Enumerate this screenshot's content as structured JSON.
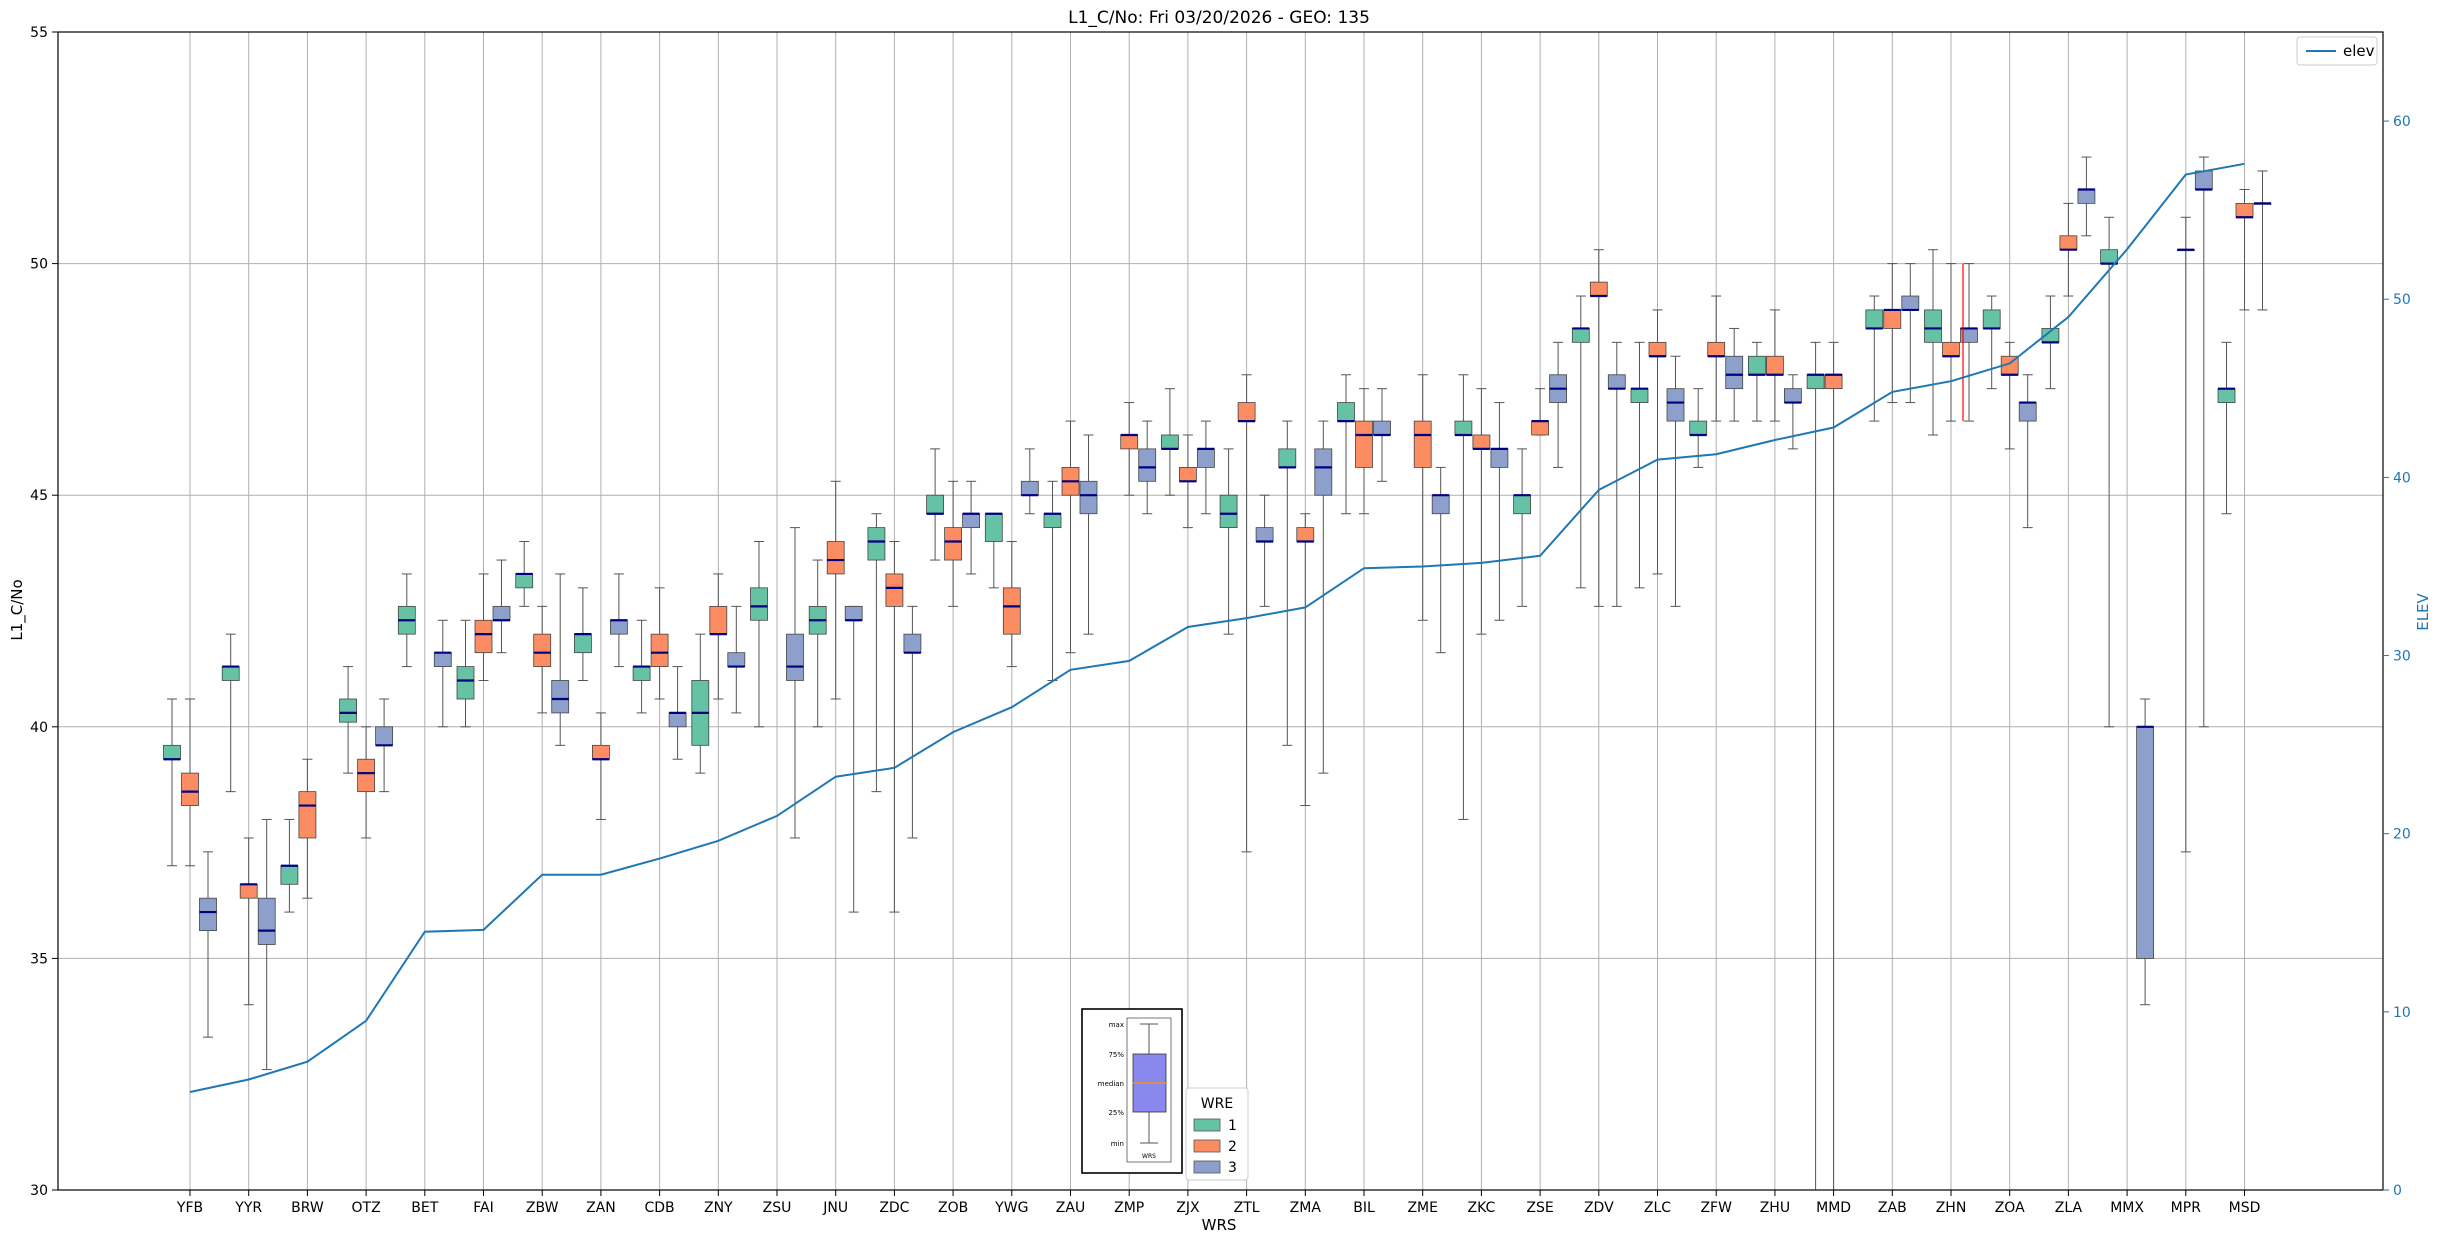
{
  "chart_data": {
    "type": "box",
    "title": "L1_C/No: Fri 03/20/2026 - GEO: 135",
    "xlabel": "WRS",
    "ylabel": "L1_C/No",
    "y2label": "ELEV",
    "ylim": [
      30,
      55
    ],
    "y2lim": [
      0,
      65
    ],
    "yticks": [
      30,
      35,
      40,
      45,
      50,
      55
    ],
    "y2ticks": [
      0,
      10,
      20,
      30,
      40,
      50,
      60
    ],
    "grid": true,
    "colors": {
      "1": "#66c2a5",
      "2": "#fc8d62",
      "3": "#8da0cb",
      "elev": "#1f77b4",
      "median": "#000080"
    },
    "categories": [
      "YFB",
      "YYR",
      "BRW",
      "OTZ",
      "BET",
      "FAI",
      "ZBW",
      "ZAN",
      "CDB",
      "ZNY",
      "ZSU",
      "JNU",
      "ZDC",
      "ZOB",
      "YWG",
      "ZAU",
      "ZMP",
      "ZJX",
      "ZTL",
      "ZMA",
      "BIL",
      "ZME",
      "ZKC",
      "ZSE",
      "ZDV",
      "ZLC",
      "ZFW",
      "ZHU",
      "MMD",
      "ZAB",
      "ZHN",
      "ZOA",
      "ZLA",
      "MMX",
      "MPR",
      "MSD"
    ],
    "elev": [
      5.5,
      6.2,
      7.2,
      9.5,
      14.5,
      14.6,
      17.7,
      17.7,
      18.6,
      19.6,
      21.0,
      23.2,
      23.7,
      25.7,
      27.1,
      29.2,
      29.7,
      31.6,
      32.1,
      32.7,
      34.9,
      35.0,
      35.2,
      35.6,
      39.3,
      41.0,
      41.3,
      42.1,
      42.8,
      44.8,
      45.4,
      46.4,
      49.0,
      52.8,
      57.0,
      57.6
    ],
    "series": [
      {
        "name": "1",
        "boxes": [
          {
            "x": 0,
            "min": 37.0,
            "q1": 39.3,
            "med": 39.3,
            "q3": 39.6,
            "max": 40.6
          },
          {
            "x": 1,
            "min": 38.6,
            "q1": 41.0,
            "med": 41.3,
            "q3": 41.3,
            "max": 42.0
          },
          {
            "x": 2,
            "min": 36.0,
            "q1": 36.6,
            "med": 37.0,
            "q3": 37.0,
            "max": 38.0
          },
          {
            "x": 3,
            "min": 39.0,
            "q1": 40.1,
            "med": 40.3,
            "q3": 40.6,
            "max": 41.3
          },
          {
            "x": 4,
            "min": 41.3,
            "q1": 42.0,
            "med": 42.3,
            "q3": 42.6,
            "max": 43.3
          },
          {
            "x": 5,
            "min": 40.0,
            "q1": 40.6,
            "med": 41.0,
            "q3": 41.3,
            "max": 42.3
          },
          {
            "x": 6,
            "min": 42.6,
            "q1": 43.0,
            "med": 43.3,
            "q3": 43.3,
            "max": 44.0
          },
          {
            "x": 7,
            "min": 41.0,
            "q1": 41.6,
            "med": 42.0,
            "q3": 42.0,
            "max": 43.0
          },
          {
            "x": 8,
            "min": 40.3,
            "q1": 41.0,
            "med": 41.3,
            "q3": 41.3,
            "max": 42.3
          },
          {
            "x": 9,
            "min": 39.0,
            "q1": 39.6,
            "med": 40.3,
            "q3": 41.0,
            "max": 42.0
          },
          {
            "x": 10,
            "min": 40.0,
            "q1": 42.3,
            "med": 42.6,
            "q3": 43.0,
            "max": 44.0
          },
          {
            "x": 11,
            "min": 40.0,
            "q1": 42.0,
            "med": 42.3,
            "q3": 42.6,
            "max": 43.6
          },
          {
            "x": 12,
            "min": 38.6,
            "q1": 43.6,
            "med": 44.0,
            "q3": 44.3,
            "max": 44.6
          },
          {
            "x": 13,
            "min": 43.6,
            "q1": 44.6,
            "med": 44.6,
            "q3": 45.0,
            "max": 46.0
          },
          {
            "x": 14,
            "min": 43.0,
            "q1": 44.0,
            "med": 44.6,
            "q3": 44.6,
            "max": 44.6
          },
          {
            "x": 15,
            "min": 41.0,
            "q1": 44.3,
            "med": 44.6,
            "q3": 44.6,
            "max": 45.3
          },
          {
            "x": 17,
            "min": 45.0,
            "q1": 46.0,
            "med": 46.0,
            "q3": 46.3,
            "max": 47.3
          },
          {
            "x": 18,
            "min": 42.0,
            "q1": 44.3,
            "med": 44.6,
            "q3": 45.0,
            "max": 46.0
          },
          {
            "x": 19,
            "min": 39.6,
            "q1": 45.6,
            "med": 45.6,
            "q3": 46.0,
            "max": 46.6
          },
          {
            "x": 20,
            "min": 44.6,
            "q1": 46.6,
            "med": 46.6,
            "q3": 47.0,
            "max": 47.6
          },
          {
            "x": 22,
            "min": 38.0,
            "q1": 46.3,
            "med": 46.3,
            "q3": 46.6,
            "max": 47.6
          },
          {
            "x": 23,
            "min": 42.6,
            "q1": 44.6,
            "med": 45.0,
            "q3": 45.0,
            "max": 46.0
          },
          {
            "x": 24,
            "min": 43.0,
            "q1": 48.3,
            "med": 48.6,
            "q3": 48.6,
            "max": 49.3
          },
          {
            "x": 25,
            "min": 43.0,
            "q1": 47.0,
            "med": 47.3,
            "q3": 47.3,
            "max": 48.3
          },
          {
            "x": 26,
            "min": 45.6,
            "q1": 46.3,
            "med": 46.3,
            "q3": 46.6,
            "max": 47.3
          },
          {
            "x": 27,
            "min": 46.6,
            "q1": 47.6,
            "med": 47.6,
            "q3": 48.0,
            "max": 48.3
          },
          {
            "x": 28,
            "min": 30.0,
            "q1": 47.3,
            "med": 47.6,
            "q3": 47.6,
            "max": 48.3
          },
          {
            "x": 29,
            "min": 46.6,
            "q1": 48.6,
            "med": 48.6,
            "q3": 49.0,
            "max": 49.3
          },
          {
            "x": 30,
            "min": 46.3,
            "q1": 48.3,
            "med": 48.6,
            "q3": 49.0,
            "max": 50.3
          },
          {
            "x": 31,
            "min": 47.3,
            "q1": 48.6,
            "med": 48.6,
            "q3": 49.0,
            "max": 49.3
          },
          {
            "x": 32,
            "min": 47.3,
            "q1": 48.3,
            "med": 48.3,
            "q3": 48.6,
            "max": 49.3
          },
          {
            "x": 33,
            "min": 40.0,
            "q1": 50.0,
            "med": 50.0,
            "q3": 50.3,
            "max": 51.0
          },
          {
            "x": 35,
            "min": 44.6,
            "q1": 47.0,
            "med": 47.3,
            "q3": 47.3,
            "max": 48.3
          }
        ]
      },
      {
        "name": "2",
        "boxes": [
          {
            "x": 0,
            "min": 37.0,
            "q1": 38.3,
            "med": 38.6,
            "q3": 39.0,
            "max": 40.6
          },
          {
            "x": 1,
            "min": 34.0,
            "q1": 36.3,
            "med": 36.6,
            "q3": 36.6,
            "max": 37.6
          },
          {
            "x": 2,
            "min": 36.3,
            "q1": 37.6,
            "med": 38.3,
            "q3": 38.6,
            "max": 39.3
          },
          {
            "x": 3,
            "min": 37.6,
            "q1": 38.6,
            "med": 39.0,
            "q3": 39.3,
            "max": 40.0
          },
          {
            "x": 5,
            "min": 41.0,
            "q1": 41.6,
            "med": 42.0,
            "q3": 42.3,
            "max": 43.3
          },
          {
            "x": 6,
            "min": 40.3,
            "q1": 41.3,
            "med": 41.6,
            "q3": 42.0,
            "max": 42.6
          },
          {
            "x": 7,
            "min": 38.0,
            "q1": 39.3,
            "med": 39.3,
            "q3": 39.6,
            "max": 40.3
          },
          {
            "x": 8,
            "min": 40.6,
            "q1": 41.3,
            "med": 41.6,
            "q3": 42.0,
            "max": 43.0
          },
          {
            "x": 9,
            "min": 40.6,
            "q1": 42.0,
            "med": 42.0,
            "q3": 42.6,
            "max": 43.3
          },
          {
            "x": 11,
            "min": 40.6,
            "q1": 43.3,
            "med": 43.6,
            "q3": 44.0,
            "max": 45.3
          },
          {
            "x": 12,
            "min": 36.0,
            "q1": 42.6,
            "med": 43.0,
            "q3": 43.3,
            "max": 44.0
          },
          {
            "x": 13,
            "min": 42.6,
            "q1": 43.6,
            "med": 44.0,
            "q3": 44.3,
            "max": 45.3
          },
          {
            "x": 14,
            "min": 41.3,
            "q1": 42.0,
            "med": 42.6,
            "q3": 43.0,
            "max": 44.0
          },
          {
            "x": 15,
            "min": 41.6,
            "q1": 45.0,
            "med": 45.3,
            "q3": 45.6,
            "max": 46.6
          },
          {
            "x": 16,
            "min": 45.0,
            "q1": 46.0,
            "med": 46.3,
            "q3": 46.3,
            "max": 47.0
          },
          {
            "x": 17,
            "min": 44.3,
            "q1": 45.3,
            "med": 45.3,
            "q3": 45.6,
            "max": 46.3
          },
          {
            "x": 18,
            "min": 37.3,
            "q1": 46.6,
            "med": 46.6,
            "q3": 47.0,
            "max": 47.6
          },
          {
            "x": 19,
            "min": 38.3,
            "q1": 44.0,
            "med": 44.0,
            "q3": 44.3,
            "max": 44.6
          },
          {
            "x": 20,
            "min": 44.6,
            "q1": 45.6,
            "med": 46.3,
            "q3": 46.6,
            "max": 47.3
          },
          {
            "x": 21,
            "min": 42.3,
            "q1": 45.6,
            "med": 46.3,
            "q3": 46.6,
            "max": 47.6
          },
          {
            "x": 22,
            "min": 42.0,
            "q1": 46.0,
            "med": 46.0,
            "q3": 46.3,
            "max": 47.3
          },
          {
            "x": 23,
            "min": 46.3,
            "q1": 46.3,
            "med": 46.6,
            "q3": 46.6,
            "max": 47.3
          },
          {
            "x": 24,
            "min": 42.6,
            "q1": 49.3,
            "med": 49.3,
            "q3": 49.6,
            "max": 50.3
          },
          {
            "x": 25,
            "min": 43.3,
            "q1": 48.0,
            "med": 48.0,
            "q3": 48.3,
            "max": 49.0
          },
          {
            "x": 26,
            "min": 46.6,
            "q1": 48.0,
            "med": 48.0,
            "q3": 48.3,
            "max": 49.3
          },
          {
            "x": 27,
            "min": 46.6,
            "q1": 47.6,
            "med": 47.6,
            "q3": 48.0,
            "max": 49.0
          },
          {
            "x": 28,
            "min": 30.0,
            "q1": 47.3,
            "med": 47.6,
            "q3": 47.6,
            "max": 48.3
          },
          {
            "x": 29,
            "min": 47.0,
            "q1": 48.6,
            "med": 49.0,
            "q3": 49.0,
            "max": 50.0
          },
          {
            "x": 30,
            "min": 46.6,
            "q1": 48.0,
            "med": 48.0,
            "q3": 48.3,
            "max": 50.0
          },
          {
            "x": 31,
            "min": 46.0,
            "q1": 47.6,
            "med": 47.6,
            "q3": 48.0,
            "max": 48.3
          },
          {
            "x": 32,
            "min": 49.3,
            "q1": 50.3,
            "med": 50.3,
            "q3": 50.6,
            "max": 51.3
          },
          {
            "x": 34,
            "min": 37.3,
            "q1": 50.3,
            "med": 50.3,
            "q3": 50.3,
            "max": 51.0
          },
          {
            "x": 35,
            "min": 49.0,
            "q1": 51.0,
            "med": 51.0,
            "q3": 51.3,
            "max": 51.6
          }
        ]
      },
      {
        "name": "3",
        "boxes": [
          {
            "x": 0,
            "min": 33.3,
            "q1": 35.6,
            "med": 36.0,
            "q3": 36.3,
            "max": 37.3
          },
          {
            "x": 1,
            "min": 32.6,
            "q1": 35.3,
            "med": 35.6,
            "q3": 36.3,
            "max": 38.0
          },
          {
            "x": 3,
            "min": 38.6,
            "q1": 39.6,
            "med": 39.6,
            "q3": 40.0,
            "max": 40.6
          },
          {
            "x": 4,
            "min": 40.0,
            "q1": 41.3,
            "med": 41.6,
            "q3": 41.6,
            "max": 42.3
          },
          {
            "x": 5,
            "min": 41.6,
            "q1": 42.3,
            "med": 42.3,
            "q3": 42.6,
            "max": 43.6
          },
          {
            "x": 6,
            "min": 39.6,
            "q1": 40.3,
            "med": 40.6,
            "q3": 41.0,
            "max": 43.3
          },
          {
            "x": 7,
            "min": 41.3,
            "q1": 42.0,
            "med": 42.3,
            "q3": 42.3,
            "max": 43.3
          },
          {
            "x": 8,
            "min": 39.3,
            "q1": 40.0,
            "med": 40.3,
            "q3": 40.3,
            "max": 41.3
          },
          {
            "x": 9,
            "min": 40.3,
            "q1": 41.3,
            "med": 41.3,
            "q3": 41.6,
            "max": 42.6
          },
          {
            "x": 10,
            "min": 37.6,
            "q1": 41.0,
            "med": 41.3,
            "q3": 42.0,
            "max": 44.3
          },
          {
            "x": 11,
            "min": 36.0,
            "q1": 42.3,
            "med": 42.3,
            "q3": 42.6,
            "max": 42.6
          },
          {
            "x": 12,
            "min": 37.6,
            "q1": 41.6,
            "med": 41.6,
            "q3": 42.0,
            "max": 42.6
          },
          {
            "x": 13,
            "min": 43.3,
            "q1": 44.3,
            "med": 44.6,
            "q3": 44.6,
            "max": 45.3
          },
          {
            "x": 14,
            "min": 44.6,
            "q1": 45.0,
            "med": 45.0,
            "q3": 45.3,
            "max": 46.0
          },
          {
            "x": 15,
            "min": 42.0,
            "q1": 44.6,
            "med": 45.0,
            "q3": 45.3,
            "max": 46.3
          },
          {
            "x": 16,
            "min": 44.6,
            "q1": 45.3,
            "med": 45.6,
            "q3": 46.0,
            "max": 46.6
          },
          {
            "x": 17,
            "min": 44.6,
            "q1": 45.6,
            "med": 46.0,
            "q3": 46.0,
            "max": 46.6
          },
          {
            "x": 18,
            "min": 42.6,
            "q1": 44.0,
            "med": 44.0,
            "q3": 44.3,
            "max": 45.0
          },
          {
            "x": 19,
            "min": 39.0,
            "q1": 45.0,
            "med": 45.6,
            "q3": 46.0,
            "max": 46.6
          },
          {
            "x": 20,
            "min": 45.3,
            "q1": 46.3,
            "med": 46.3,
            "q3": 46.6,
            "max": 47.3
          },
          {
            "x": 21,
            "min": 41.6,
            "q1": 44.6,
            "med": 45.0,
            "q3": 45.0,
            "max": 45.6
          },
          {
            "x": 22,
            "min": 42.3,
            "q1": 45.6,
            "med": 46.0,
            "q3": 46.0,
            "max": 47.0
          },
          {
            "x": 23,
            "min": 45.6,
            "q1": 47.0,
            "med": 47.3,
            "q3": 47.6,
            "max": 48.3
          },
          {
            "x": 24,
            "min": 42.6,
            "q1": 47.3,
            "med": 47.3,
            "q3": 47.6,
            "max": 48.3
          },
          {
            "x": 25,
            "min": 42.6,
            "q1": 46.6,
            "med": 47.0,
            "q3": 47.3,
            "max": 48.0
          },
          {
            "x": 26,
            "min": 46.6,
            "q1": 47.3,
            "med": 47.6,
            "q3": 48.0,
            "max": 48.6
          },
          {
            "x": 27,
            "min": 46.0,
            "q1": 47.0,
            "med": 47.0,
            "q3": 47.3,
            "max": 47.6
          },
          {
            "x": 29,
            "min": 47.0,
            "q1": 49.0,
            "med": 49.0,
            "q3": 49.3,
            "max": 50.0
          },
          {
            "x": 30,
            "min": 46.6,
            "q1": 48.3,
            "med": 48.6,
            "q3": 48.6,
            "max": 50.0
          },
          {
            "x": 31,
            "min": 44.3,
            "q1": 46.6,
            "med": 47.0,
            "q3": 47.0,
            "max": 47.6
          },
          {
            "x": 32,
            "min": 50.6,
            "q1": 51.3,
            "med": 51.6,
            "q3": 51.6,
            "max": 52.3
          },
          {
            "x": 33,
            "min": 34.0,
            "q1": 35.0,
            "med": 40.0,
            "q3": 40.0,
            "max": 40.6
          },
          {
            "x": 34,
            "min": 40.0,
            "q1": 51.6,
            "med": 51.6,
            "q3": 52.0,
            "max": 52.3
          },
          {
            "x": 35,
            "min": 49.0,
            "q1": 51.3,
            "med": 51.3,
            "q3": 51.3,
            "max": 52.0
          }
        ]
      }
    ],
    "highlight": {
      "x": 30,
      "min": 46.6,
      "max": 50.0,
      "color": "#ff0000"
    },
    "legend_elev": {
      "label": "elev",
      "placement": "top-right"
    },
    "legend_wre": {
      "title": "WRE",
      "entries": [
        "1",
        "2",
        "3"
      ],
      "placement": "bottom-center"
    },
    "key_box": {
      "labels": [
        "max",
        "75%",
        "median",
        "25%",
        "min"
      ],
      "xlabel": "WRS"
    }
  }
}
